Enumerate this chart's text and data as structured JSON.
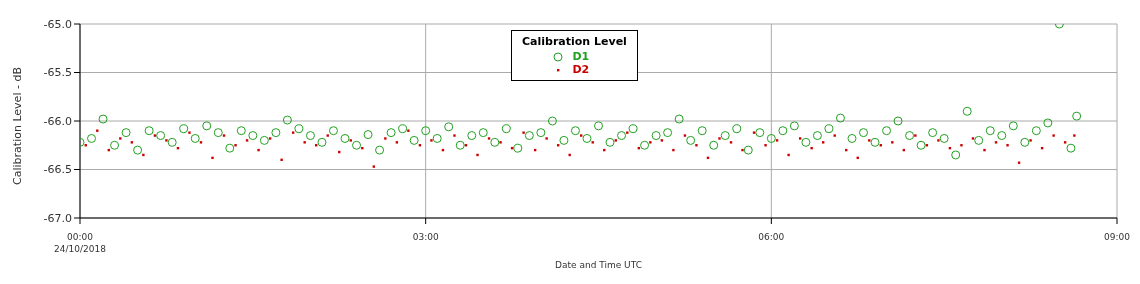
{
  "chart_data": {
    "type": "scatter",
    "xlabel": "Date and Time UTC",
    "ylabel": "Calibration Level - dB",
    "legend_title": "Calibration Level",
    "legend": "top",
    "grid": true,
    "xlim": [
      0,
      9
    ],
    "xticks": [
      {
        "value": 0,
        "label": "00:00\n24/10/2018"
      },
      {
        "value": 3,
        "label": "03:00"
      },
      {
        "value": 6,
        "label": "06:00"
      },
      {
        "value": 9,
        "label": "09:00"
      }
    ],
    "ylim": [
      -67,
      -65
    ],
    "yticks": [
      {
        "value": -67,
        "label": "-67.0"
      },
      {
        "value": -66.5,
        "label": "-66.5"
      },
      {
        "value": -66,
        "label": "-66.0"
      },
      {
        "value": -65.5,
        "label": "-65.5"
      },
      {
        "value": -65,
        "label": "-65.0"
      }
    ],
    "series": [
      {
        "name": "D1",
        "color": "#22a022",
        "marker": "circle",
        "x": [
          0,
          0.1,
          0.2,
          0.3,
          0.4,
          0.5,
          0.6,
          0.7,
          0.8,
          0.9,
          1,
          1.1,
          1.2,
          1.3,
          1.4,
          1.5,
          1.6,
          1.7,
          1.8,
          1.9,
          2,
          2.1,
          2.2,
          2.3,
          2.4,
          2.5,
          2.6,
          2.7,
          2.8,
          2.9,
          3,
          3.1,
          3.2,
          3.3,
          3.4,
          3.5,
          3.6,
          3.7,
          3.8,
          3.9,
          4,
          4.1,
          4.2,
          4.3,
          4.4,
          4.5,
          4.6,
          4.7,
          4.8,
          4.9,
          5,
          5.1,
          5.2,
          5.3,
          5.4,
          5.5,
          5.6,
          5.7,
          5.8,
          5.9,
          6,
          6.1,
          6.2,
          6.3,
          6.4,
          6.5,
          6.6,
          6.7,
          6.8,
          6.9,
          7,
          7.1,
          7.2,
          7.3,
          7.4,
          7.5,
          7.6,
          7.7,
          7.8,
          7.9,
          8,
          8.1,
          8.2,
          8.3,
          8.4,
          8.5,
          8.6,
          8.65
        ],
        "values": [
          -66.22,
          -66.18,
          -65.98,
          -66.25,
          -66.12,
          -66.3,
          -66.1,
          -66.15,
          -66.22,
          -66.08,
          -66.18,
          -66.05,
          -66.12,
          -66.28,
          -66.1,
          -66.15,
          -66.2,
          -66.12,
          -65.99,
          -66.08,
          -66.15,
          -66.22,
          -66.1,
          -66.18,
          -66.25,
          -66.14,
          -66.3,
          -66.12,
          -66.08,
          -66.2,
          -66.1,
          -66.18,
          -66.06,
          -66.25,
          -66.15,
          -66.12,
          -66.22,
          -66.08,
          -66.28,
          -66.15,
          -66.12,
          -66,
          -66.2,
          -66.1,
          -66.18,
          -66.05,
          -66.22,
          -66.15,
          -66.08,
          -66.25,
          -66.15,
          -66.12,
          -65.98,
          -66.2,
          -66.1,
          -66.25,
          -66.15,
          -66.08,
          -66.3,
          -66.12,
          -66.18,
          -66.1,
          -66.05,
          -66.22,
          -66.15,
          -66.08,
          -65.97,
          -66.18,
          -66.12,
          -66.22,
          -66.1,
          -66,
          -66.15,
          -66.25,
          -66.12,
          -66.18,
          -66.35,
          -65.9,
          -66.2,
          -66.1,
          -66.15,
          -66.05,
          -66.22,
          -66.1,
          -66.02,
          -65,
          -66.28,
          -65.95
        ]
      },
      {
        "name": "D2",
        "color": "#cc0000",
        "marker": "square",
        "x": [
          0.05,
          0.15,
          0.25,
          0.35,
          0.45,
          0.55,
          0.65,
          0.75,
          0.85,
          0.95,
          1.05,
          1.15,
          1.25,
          1.35,
          1.45,
          1.55,
          1.65,
          1.75,
          1.85,
          1.95,
          2.05,
          2.15,
          2.25,
          2.35,
          2.45,
          2.55,
          2.65,
          2.75,
          2.85,
          2.95,
          3.05,
          3.15,
          3.25,
          3.35,
          3.45,
          3.55,
          3.65,
          3.75,
          3.85,
          3.95,
          4.05,
          4.15,
          4.25,
          4.35,
          4.45,
          4.55,
          4.65,
          4.75,
          4.85,
          4.95,
          5.05,
          5.15,
          5.25,
          5.35,
          5.45,
          5.55,
          5.65,
          5.75,
          5.85,
          5.95,
          6.05,
          6.15,
          6.25,
          6.35,
          6.45,
          6.55,
          6.65,
          6.75,
          6.85,
          6.95,
          7.05,
          7.15,
          7.25,
          7.35,
          7.45,
          7.55,
          7.65,
          7.75,
          7.85,
          7.95,
          8.05,
          8.15,
          8.25,
          8.35,
          8.45,
          8.55,
          8.63
        ],
        "values": [
          -66.25,
          -66.1,
          -66.3,
          -66.18,
          -66.22,
          -66.35,
          -66.15,
          -66.2,
          -66.28,
          -66.12,
          -66.22,
          -66.38,
          -66.15,
          -66.25,
          -66.2,
          -66.3,
          -66.18,
          -66.4,
          -66.12,
          -66.22,
          -66.25,
          -66.15,
          -66.32,
          -66.2,
          -66.28,
          -66.47,
          -66.18,
          -66.22,
          -66.1,
          -66.25,
          -66.2,
          -66.3,
          -66.15,
          -66.25,
          -66.35,
          -66.18,
          -66.22,
          -66.28,
          -66.12,
          -66.3,
          -66.18,
          -66.25,
          -66.35,
          -66.15,
          -66.22,
          -66.3,
          -66.2,
          -66.12,
          -66.28,
          -66.22,
          -66.2,
          -66.3,
          -66.15,
          -66.25,
          -66.38,
          -66.18,
          -66.22,
          -66.3,
          -66.12,
          -66.25,
          -66.2,
          -66.35,
          -66.18,
          -66.28,
          -66.22,
          -66.15,
          -66.3,
          -66.38,
          -66.2,
          -66.25,
          -66.22,
          -66.3,
          -66.15,
          -66.25,
          -66.2,
          -66.28,
          -66.25,
          -66.18,
          -66.3,
          -66.22,
          -66.25,
          -66.43,
          -66.2,
          -66.28,
          -66.15,
          -66.22,
          -66.15
        ]
      }
    ]
  }
}
